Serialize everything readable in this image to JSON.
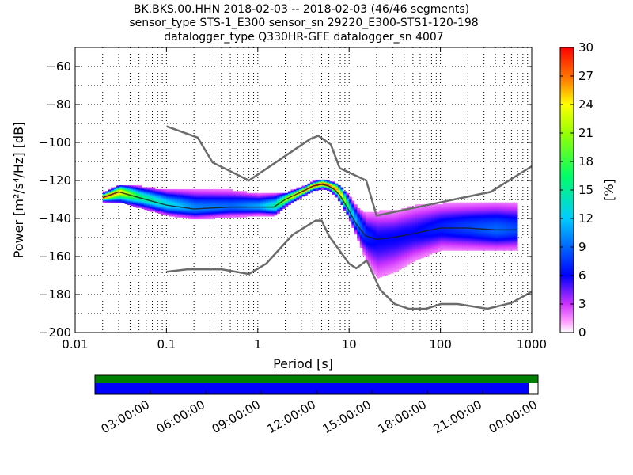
{
  "title": {
    "line1": "BK.BKS.00.HHN   2018-02-03 -- 2018-02-03  (46/46 segments)",
    "line2": "sensor_type STS-1_E300 sensor_sn 29220_E300-STS1-120-198",
    "line3": "datalogger_type Q330HR-GFE datalogger_sn 4007"
  },
  "chart_data": {
    "type": "heatmap",
    "xlabel": "Period [s]",
    "ylabel": "Power [m²/s⁴/Hz] [dB]",
    "x_scale": "log",
    "xlim": [
      0.01,
      1000
    ],
    "ylim": [
      -200,
      -50
    ],
    "x_ticks": [
      0.01,
      0.1,
      1,
      10,
      100,
      1000
    ],
    "x_tick_labels": [
      "0.01",
      "0.1",
      "1",
      "10",
      "100",
      "1000"
    ],
    "y_ticks": [
      -200,
      -180,
      -160,
      -140,
      -120,
      -100,
      -80,
      -60
    ],
    "y_tick_labels": [
      "−200",
      "−180",
      "−160",
      "−140",
      "−120",
      "−100",
      "−80",
      "−60"
    ],
    "grid": true,
    "colorbar": {
      "label": "[%]",
      "range": [
        0,
        30
      ],
      "ticks": [
        0,
        3,
        6,
        9,
        12,
        15,
        18,
        21,
        24,
        27,
        30
      ],
      "tick_labels": [
        "0",
        "3",
        "6",
        "9",
        "12",
        "15",
        "18",
        "21",
        "24",
        "27",
        "30"
      ]
    },
    "density_band": {
      "periods": [
        0.02,
        0.03,
        0.05,
        0.1,
        0.2,
        0.5,
        1,
        1.5,
        2,
        3,
        4,
        5,
        6,
        7,
        8,
        10,
        12,
        15,
        20,
        30,
        50,
        100,
        200,
        400,
        700
      ],
      "mode_db": [
        -129,
        -126,
        -129,
        -133,
        -135,
        -134,
        -134,
        -134,
        -130,
        -126,
        -123,
        -122,
        -123,
        -125,
        -128,
        -136,
        -143,
        -149,
        -151,
        -150,
        -148,
        -145,
        -145,
        -146,
        -146
      ],
      "low_db": [
        -131,
        -131,
        -134,
        -138,
        -140,
        -139,
        -138,
        -138,
        -133,
        -128,
        -125,
        -124,
        -125,
        -128,
        -132,
        -141,
        -150,
        -162,
        -171,
        -168,
        -162,
        -156,
        -156,
        -156,
        -156
      ],
      "high_db": [
        -127,
        -123,
        -124,
        -126,
        -126,
        -126,
        -128,
        -128,
        -127,
        -124,
        -121,
        -120,
        -121,
        -122,
        -124,
        -130,
        -135,
        -138,
        -137,
        -137,
        -134,
        -133,
        -133,
        -133,
        -133
      ],
      "peak_pct": [
        28,
        25,
        16,
        13,
        10,
        9,
        11,
        15,
        22,
        27,
        28,
        29,
        27,
        26,
        24,
        14,
        10,
        7,
        6,
        6,
        6,
        7,
        8,
        9,
        8
      ]
    },
    "noise_models": [
      {
        "name": "NHNM",
        "periods": [
          0.1,
          0.22,
          0.32,
          0.8,
          3.8,
          4.6,
          6.3,
          7.9,
          15.4,
          20,
          354.8,
          1000
        ],
        "db": [
          -91.5,
          -97.4,
          -110.5,
          -120,
          -98,
          -96.5,
          -101,
          -113.5,
          -120,
          -138.5,
          -126,
          -112.5
        ]
      },
      {
        "name": "NLNM",
        "periods": [
          0.1,
          0.17,
          0.4,
          0.8,
          1.24,
          2.4,
          4.3,
          5,
          6,
          10,
          12,
          15.6,
          21.9,
          31.6,
          45,
          70,
          101,
          154,
          328,
          600,
          1000
        ],
        "db": [
          -168,
          -166.7,
          -166.7,
          -169.2,
          -163.7,
          -148.6,
          -141.1,
          -141.1,
          -149,
          -163.8,
          -166.2,
          -162.1,
          -177.5,
          -185,
          -187.5,
          -187.5,
          -185,
          -185,
          -187.5,
          -184.4,
          -178.5
        ]
      }
    ],
    "mean_line": {
      "periods": [
        0.02,
        0.03,
        0.05,
        0.1,
        0.2,
        0.5,
        1,
        1.5,
        2,
        3,
        4,
        5,
        6,
        7,
        8,
        10,
        12,
        15,
        20,
        30,
        50,
        100,
        200,
        400,
        700
      ],
      "db": [
        -129,
        -126,
        -129,
        -133,
        -135,
        -134,
        -134,
        -134,
        -130,
        -126,
        -123,
        -122,
        -123,
        -125,
        -128,
        -136,
        -143,
        -149,
        -151,
        -150,
        -148,
        -145,
        -145,
        -146,
        -146
      ]
    },
    "timeline": {
      "tick_labels": [
        "03:00:00",
        "06:00:00",
        "09:00:00",
        "12:00:00",
        "15:00:00",
        "18:00:00",
        "21:00:00",
        "00:00:00"
      ],
      "green_coverage_fraction": 1.0,
      "blue_coverage_fraction": 0.979
    }
  },
  "colors": {
    "noise_model": "#6b6b6b",
    "mean_line": "#1a1a1a",
    "timeline_green": "#008000",
    "timeline_blue": "#0000ff"
  }
}
